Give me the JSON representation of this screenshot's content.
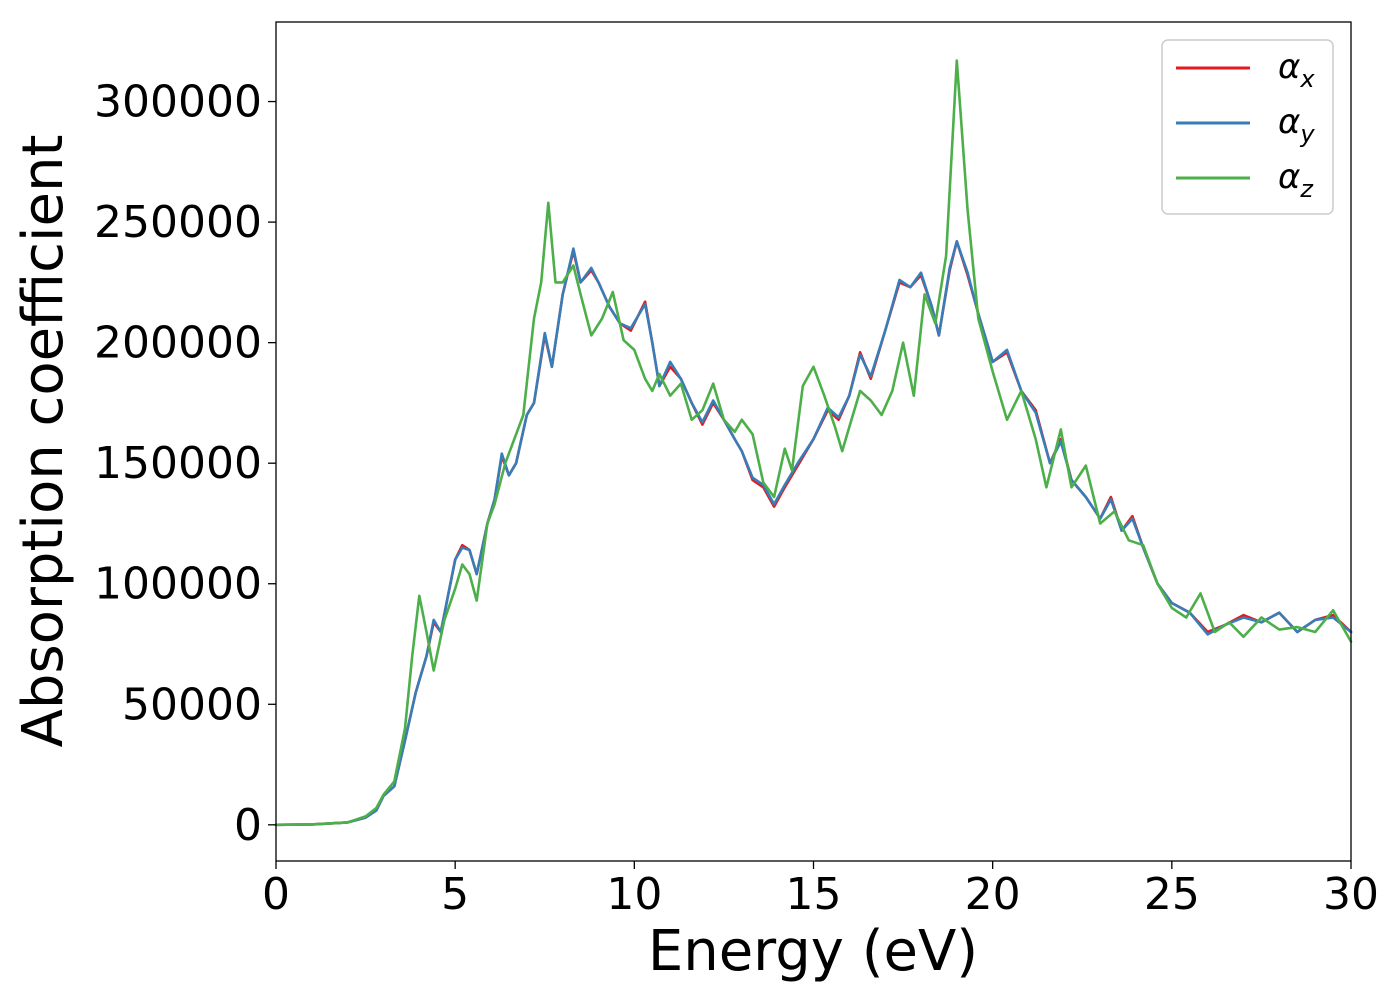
{
  "chart_data": {
    "type": "line",
    "xlabel": "Energy (eV)",
    "ylabel": "Absorption coefficient",
    "xlim": [
      0,
      30
    ],
    "ylim": [
      -15000,
      333000
    ],
    "xticks": [
      0,
      5,
      10,
      15,
      20,
      25,
      30
    ],
    "xtick_labels": [
      "0",
      "5",
      "10",
      "15",
      "20",
      "25",
      "30"
    ],
    "yticks": [
      0,
      50000,
      100000,
      150000,
      200000,
      250000,
      300000
    ],
    "ytick_labels": [
      "0",
      "50000",
      "100000",
      "150000",
      "200000",
      "250000",
      "300000"
    ],
    "grid": false,
    "legend_position": "top-right",
    "series": [
      {
        "name": "α",
        "subscript": "x",
        "color": "#e41a1c",
        "points": [
          [
            0,
            0
          ],
          [
            1,
            200
          ],
          [
            2,
            1000
          ],
          [
            2.5,
            3000
          ],
          [
            2.8,
            6000
          ],
          [
            3.0,
            12000
          ],
          [
            3.3,
            16000
          ],
          [
            3.6,
            35000
          ],
          [
            3.9,
            55000
          ],
          [
            4.2,
            70000
          ],
          [
            4.4,
            84000
          ],
          [
            4.6,
            80000
          ],
          [
            4.8,
            95000
          ],
          [
            5.0,
            110000
          ],
          [
            5.2,
            116000
          ],
          [
            5.4,
            114000
          ],
          [
            5.6,
            104000
          ],
          [
            5.9,
            125000
          ],
          [
            6.1,
            135000
          ],
          [
            6.3,
            153000
          ],
          [
            6.5,
            145000
          ],
          [
            6.7,
            150000
          ],
          [
            7.0,
            170000
          ],
          [
            7.2,
            175000
          ],
          [
            7.5,
            203000
          ],
          [
            7.7,
            190000
          ],
          [
            8.0,
            220000
          ],
          [
            8.3,
            238000
          ],
          [
            8.5,
            225000
          ],
          [
            8.8,
            230000
          ],
          [
            9.0,
            225000
          ],
          [
            9.3,
            215000
          ],
          [
            9.6,
            208000
          ],
          [
            9.9,
            205000
          ],
          [
            10.3,
            217000
          ],
          [
            10.5,
            200000
          ],
          [
            10.7,
            182000
          ],
          [
            11.0,
            190000
          ],
          [
            11.3,
            185000
          ],
          [
            11.6,
            175000
          ],
          [
            11.9,
            166000
          ],
          [
            12.2,
            175000
          ],
          [
            12.5,
            168000
          ],
          [
            12.8,
            160000
          ],
          [
            13.0,
            155000
          ],
          [
            13.3,
            143000
          ],
          [
            13.6,
            140000
          ],
          [
            13.9,
            132000
          ],
          [
            14.2,
            140000
          ],
          [
            14.6,
            150000
          ],
          [
            15.0,
            160000
          ],
          [
            15.4,
            172000
          ],
          [
            15.7,
            168000
          ],
          [
            16.0,
            178000
          ],
          [
            16.3,
            196000
          ],
          [
            16.6,
            185000
          ],
          [
            17.0,
            205000
          ],
          [
            17.4,
            225000
          ],
          [
            17.7,
            223000
          ],
          [
            18.0,
            228000
          ],
          [
            18.3,
            215000
          ],
          [
            18.5,
            203000
          ],
          [
            18.8,
            230000
          ],
          [
            19.0,
            242000
          ],
          [
            19.3,
            228000
          ],
          [
            19.6,
            212000
          ],
          [
            20.0,
            192000
          ],
          [
            20.4,
            196000
          ],
          [
            20.8,
            180000
          ],
          [
            21.2,
            172000
          ],
          [
            21.6,
            150000
          ],
          [
            21.9,
            160000
          ],
          [
            22.2,
            143000
          ],
          [
            22.6,
            136000
          ],
          [
            23.0,
            127000
          ],
          [
            23.3,
            136000
          ],
          [
            23.6,
            122000
          ],
          [
            23.9,
            128000
          ],
          [
            24.2,
            115000
          ],
          [
            24.6,
            100000
          ],
          [
            25.0,
            92000
          ],
          [
            25.5,
            88000
          ],
          [
            26.0,
            80000
          ],
          [
            26.5,
            83000
          ],
          [
            27.0,
            87000
          ],
          [
            27.5,
            84000
          ],
          [
            28.0,
            88000
          ],
          [
            28.5,
            80000
          ],
          [
            29.0,
            85000
          ],
          [
            29.5,
            87000
          ],
          [
            30.0,
            80000
          ]
        ]
      },
      {
        "name": "α",
        "subscript": "y",
        "color": "#377eb8",
        "points": [
          [
            0,
            0
          ],
          [
            1,
            200
          ],
          [
            2,
            1000
          ],
          [
            2.5,
            3000
          ],
          [
            2.8,
            6000
          ],
          [
            3.0,
            12000
          ],
          [
            3.3,
            16000
          ],
          [
            3.6,
            35000
          ],
          [
            3.9,
            55000
          ],
          [
            4.2,
            70000
          ],
          [
            4.4,
            85000
          ],
          [
            4.6,
            80000
          ],
          [
            4.8,
            95000
          ],
          [
            5.0,
            110000
          ],
          [
            5.2,
            115000
          ],
          [
            5.4,
            114000
          ],
          [
            5.6,
            104000
          ],
          [
            5.9,
            125000
          ],
          [
            6.1,
            135000
          ],
          [
            6.3,
            154000
          ],
          [
            6.5,
            145000
          ],
          [
            6.7,
            150000
          ],
          [
            7.0,
            170000
          ],
          [
            7.2,
            175000
          ],
          [
            7.5,
            204000
          ],
          [
            7.7,
            190000
          ],
          [
            8.0,
            220000
          ],
          [
            8.3,
            239000
          ],
          [
            8.5,
            225000
          ],
          [
            8.8,
            231000
          ],
          [
            9.0,
            225000
          ],
          [
            9.3,
            215000
          ],
          [
            9.6,
            208000
          ],
          [
            9.9,
            206000
          ],
          [
            10.3,
            216000
          ],
          [
            10.5,
            200000
          ],
          [
            10.7,
            182000
          ],
          [
            11.0,
            192000
          ],
          [
            11.3,
            185000
          ],
          [
            11.6,
            175000
          ],
          [
            11.9,
            167000
          ],
          [
            12.2,
            176000
          ],
          [
            12.5,
            168000
          ],
          [
            12.8,
            160000
          ],
          [
            13.0,
            155000
          ],
          [
            13.3,
            144000
          ],
          [
            13.6,
            141000
          ],
          [
            13.9,
            133000
          ],
          [
            14.2,
            141000
          ],
          [
            14.6,
            151000
          ],
          [
            15.0,
            160000
          ],
          [
            15.4,
            173000
          ],
          [
            15.7,
            169000
          ],
          [
            16.0,
            178000
          ],
          [
            16.3,
            195000
          ],
          [
            16.6,
            186000
          ],
          [
            17.0,
            205000
          ],
          [
            17.4,
            226000
          ],
          [
            17.7,
            223000
          ],
          [
            18.0,
            229000
          ],
          [
            18.3,
            215000
          ],
          [
            18.5,
            203000
          ],
          [
            18.8,
            231000
          ],
          [
            19.0,
            242000
          ],
          [
            19.3,
            229000
          ],
          [
            19.6,
            212000
          ],
          [
            20.0,
            192000
          ],
          [
            20.4,
            197000
          ],
          [
            20.8,
            180000
          ],
          [
            21.2,
            171000
          ],
          [
            21.6,
            150000
          ],
          [
            21.9,
            159000
          ],
          [
            22.2,
            143000
          ],
          [
            22.6,
            136000
          ],
          [
            23.0,
            127000
          ],
          [
            23.3,
            135000
          ],
          [
            23.6,
            122000
          ],
          [
            23.9,
            127000
          ],
          [
            24.2,
            115000
          ],
          [
            24.6,
            100000
          ],
          [
            25.0,
            92000
          ],
          [
            25.5,
            88000
          ],
          [
            26.0,
            79000
          ],
          [
            26.5,
            83000
          ],
          [
            27.0,
            86000
          ],
          [
            27.5,
            84000
          ],
          [
            28.0,
            88000
          ],
          [
            28.5,
            80000
          ],
          [
            29.0,
            85000
          ],
          [
            29.5,
            86000
          ],
          [
            30.0,
            80000
          ]
        ]
      },
      {
        "name": "α",
        "subscript": "z",
        "color": "#4daf4a",
        "points": [
          [
            0,
            0
          ],
          [
            1,
            200
          ],
          [
            2,
            1000
          ],
          [
            2.5,
            3500
          ],
          [
            2.8,
            7000
          ],
          [
            3.0,
            12500
          ],
          [
            3.3,
            18000
          ],
          [
            3.6,
            40000
          ],
          [
            3.8,
            70000
          ],
          [
            4.0,
            95000
          ],
          [
            4.2,
            80000
          ],
          [
            4.4,
            64000
          ],
          [
            4.7,
            85000
          ],
          [
            5.0,
            98000
          ],
          [
            5.2,
            108000
          ],
          [
            5.4,
            104000
          ],
          [
            5.6,
            93000
          ],
          [
            5.9,
            125000
          ],
          [
            6.1,
            133000
          ],
          [
            6.4,
            150000
          ],
          [
            6.6,
            158000
          ],
          [
            6.9,
            170000
          ],
          [
            7.2,
            210000
          ],
          [
            7.4,
            225000
          ],
          [
            7.6,
            258000
          ],
          [
            7.8,
            225000
          ],
          [
            8.0,
            225000
          ],
          [
            8.3,
            232000
          ],
          [
            8.5,
            220000
          ],
          [
            8.8,
            203000
          ],
          [
            9.1,
            210000
          ],
          [
            9.4,
            221000
          ],
          [
            9.7,
            201000
          ],
          [
            10.0,
            197000
          ],
          [
            10.3,
            185000
          ],
          [
            10.5,
            180000
          ],
          [
            10.7,
            187000
          ],
          [
            11.0,
            178000
          ],
          [
            11.3,
            183000
          ],
          [
            11.6,
            168000
          ],
          [
            11.9,
            172000
          ],
          [
            12.2,
            183000
          ],
          [
            12.5,
            168000
          ],
          [
            12.8,
            163000
          ],
          [
            13.0,
            168000
          ],
          [
            13.3,
            162000
          ],
          [
            13.6,
            142000
          ],
          [
            13.9,
            136000
          ],
          [
            14.2,
            156000
          ],
          [
            14.4,
            147000
          ],
          [
            14.7,
            182000
          ],
          [
            15.0,
            190000
          ],
          [
            15.3,
            178000
          ],
          [
            15.6,
            165000
          ],
          [
            15.8,
            155000
          ],
          [
            16.0,
            165000
          ],
          [
            16.3,
            180000
          ],
          [
            16.6,
            176000
          ],
          [
            16.9,
            170000
          ],
          [
            17.2,
            180000
          ],
          [
            17.5,
            200000
          ],
          [
            17.8,
            178000
          ],
          [
            18.1,
            220000
          ],
          [
            18.4,
            208000
          ],
          [
            18.7,
            236000
          ],
          [
            19.0,
            317000
          ],
          [
            19.3,
            255000
          ],
          [
            19.6,
            210000
          ],
          [
            20.0,
            188000
          ],
          [
            20.4,
            168000
          ],
          [
            20.8,
            180000
          ],
          [
            21.2,
            160000
          ],
          [
            21.5,
            140000
          ],
          [
            21.9,
            164000
          ],
          [
            22.2,
            140000
          ],
          [
            22.6,
            149000
          ],
          [
            23.0,
            125000
          ],
          [
            23.4,
            130000
          ],
          [
            23.8,
            118000
          ],
          [
            24.2,
            116000
          ],
          [
            24.6,
            100000
          ],
          [
            25.0,
            90000
          ],
          [
            25.4,
            86000
          ],
          [
            25.8,
            96000
          ],
          [
            26.2,
            80000
          ],
          [
            26.6,
            84000
          ],
          [
            27.0,
            78000
          ],
          [
            27.5,
            86000
          ],
          [
            28.0,
            81000
          ],
          [
            28.5,
            82000
          ],
          [
            29.0,
            80000
          ],
          [
            29.5,
            89000
          ],
          [
            30.0,
            76000
          ]
        ]
      }
    ]
  }
}
